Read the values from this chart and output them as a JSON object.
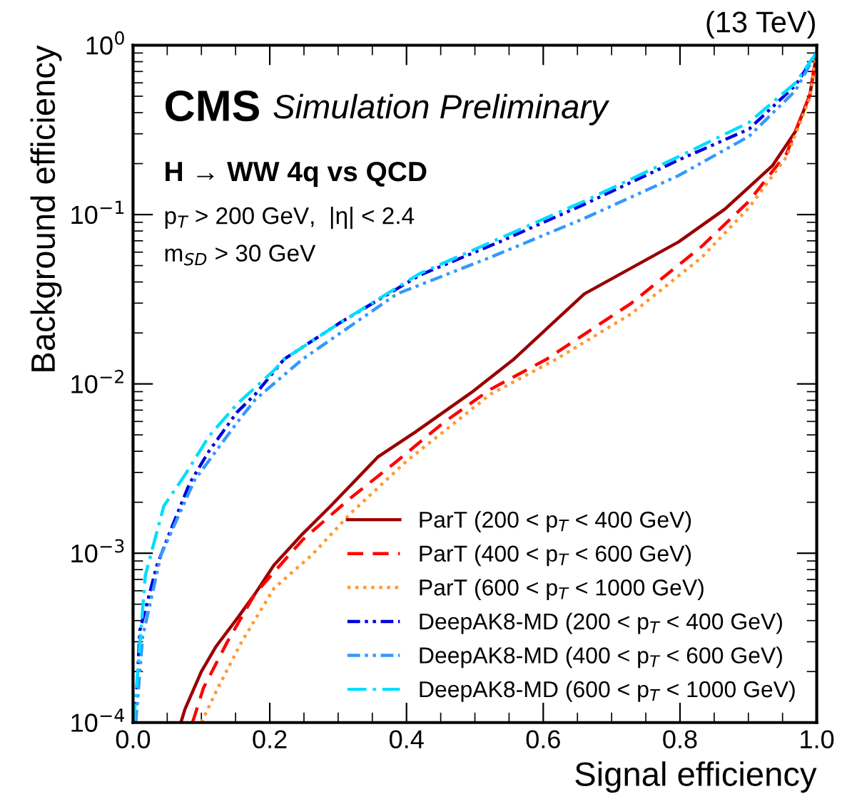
{
  "chart_data": {
    "type": "line",
    "xlabel": "Signal efficiency",
    "ylabel": "Background efficiency",
    "log": "y",
    "grid": false,
    "legend": "bottom right",
    "xlim": [
      0,
      1
    ],
    "xticks": [
      {
        "value": 0,
        "label": "0.0"
      },
      0.2,
      0.4,
      0.6,
      0.8,
      {
        "value": 1,
        "label": "1.0"
      }
    ],
    "ylim": [
      0.0001,
      1
    ],
    "yticks": [
      {
        "value": 0.0001,
        "label": "10$^{−4}$"
      },
      {
        "value": 0.001,
        "label": "10$^{−3}$"
      },
      {
        "value": 0.01,
        "label": "10$^{−2}$"
      },
      {
        "value": 0.1,
        "label": "10$^{−1}$"
      },
      {
        "value": 1,
        "label": "10$^{0}$"
      }
    ],
    "annotations": [
      "(13 TeV)",
      "CMS",
      "Simulation Preliminary",
      "H → WW 4q vs QCD",
      "p$_{T}$ > 200 GeV,  |η| < 2.4",
      "m$_{SD}$ > 30 GeV"
    ],
    "series": [
      {
        "name": "ParT (200 < p$_{T}$ < 400 GeV)",
        "color": "#990000",
        "line_style": "solid",
        "x": [
          0.07,
          0.076,
          0.1,
          0.121,
          0.152,
          0.179,
          0.206,
          0.248,
          0.289,
          0.358,
          0.413,
          0.495,
          0.557,
          0.66,
          0.798,
          0.866,
          0.935,
          0.969,
          0.99,
          1.0
        ],
        "values": [
          0.0001,
          0.00012,
          0.0002,
          0.00028,
          0.00041,
          0.00058,
          0.00085,
          0.0013,
          0.0019,
          0.0037,
          0.0052,
          0.0089,
          0.014,
          0.034,
          0.069,
          0.108,
          0.194,
          0.31,
          0.51,
          0.91
        ]
      },
      {
        "name": "ParT (400 < p$_{T}$ < 600 GeV)",
        "color": "#ff0000",
        "line_style": "dashed",
        "x": [
          0.087,
          0.103,
          0.138,
          0.179,
          0.248,
          0.317,
          0.386,
          0.454,
          0.523,
          0.605,
          0.729,
          0.832,
          0.901,
          0.956,
          0.99,
          1.0
        ],
        "values": [
          0.0001,
          0.00016,
          0.0003,
          0.00058,
          0.0012,
          0.0021,
          0.0035,
          0.0059,
          0.0093,
          0.014,
          0.03,
          0.065,
          0.12,
          0.23,
          0.51,
          0.91
        ]
      },
      {
        "name": "ParT (600 < p$_{T}$ < 1000 GeV)",
        "color": "#ff9933",
        "line_style": "dotted",
        "x": [
          0.1,
          0.124,
          0.159,
          0.206,
          0.262,
          0.317,
          0.4,
          0.523,
          0.619,
          0.729,
          0.832,
          0.901,
          0.956,
          0.99,
          1.0
        ],
        "values": [
          0.0001,
          0.00016,
          0.0003,
          0.00062,
          0.00098,
          0.0017,
          0.0035,
          0.0087,
          0.014,
          0.026,
          0.056,
          0.11,
          0.22,
          0.49,
          0.91
        ]
      },
      {
        "name": "DeepAK8-MD (200 < p$_{T}$ < 400 GeV)",
        "color": "#0000dd",
        "line_style": "dashdotdot",
        "x": [
          0.003,
          0.01,
          0.035,
          0.056,
          0.083,
          0.111,
          0.152,
          0.179,
          0.221,
          0.303,
          0.42,
          0.536,
          0.66,
          0.798,
          0.901,
          0.969,
          1.0
        ],
        "values": [
          0.0001,
          0.00035,
          0.00085,
          0.0014,
          0.0026,
          0.004,
          0.0068,
          0.0087,
          0.014,
          0.023,
          0.044,
          0.069,
          0.115,
          0.21,
          0.32,
          0.58,
          0.91
        ]
      },
      {
        "name": "DeepAK8-MD (400 < p$_{T}$ < 600 GeV)",
        "color": "#3399ff",
        "line_style": "dashdotdot",
        "x": [
          0.004,
          0.014,
          0.041,
          0.09,
          0.152,
          0.179,
          0.248,
          0.386,
          0.523,
          0.66,
          0.798,
          0.901,
          0.969,
          1.0
        ],
        "values": [
          0.0001,
          0.00032,
          0.00098,
          0.0027,
          0.0059,
          0.0081,
          0.014,
          0.034,
          0.056,
          0.095,
          0.17,
          0.29,
          0.54,
          0.91
        ]
      },
      {
        "name": "DeepAK8-MD (600 < p$_{T}$ < 1000 GeV)",
        "color": "#00ddff",
        "line_style": "dashdot",
        "x": [
          0.001,
          0.018,
          0.045,
          0.076,
          0.111,
          0.152,
          0.206,
          0.221,
          0.303,
          0.42,
          0.66,
          0.798,
          0.901,
          0.969,
          1.0
        ],
        "values": [
          0.0001,
          0.00074,
          0.0019,
          0.0029,
          0.0049,
          0.0076,
          0.012,
          0.014,
          0.023,
          0.045,
          0.12,
          0.22,
          0.35,
          0.6,
          0.91
        ]
      }
    ]
  }
}
